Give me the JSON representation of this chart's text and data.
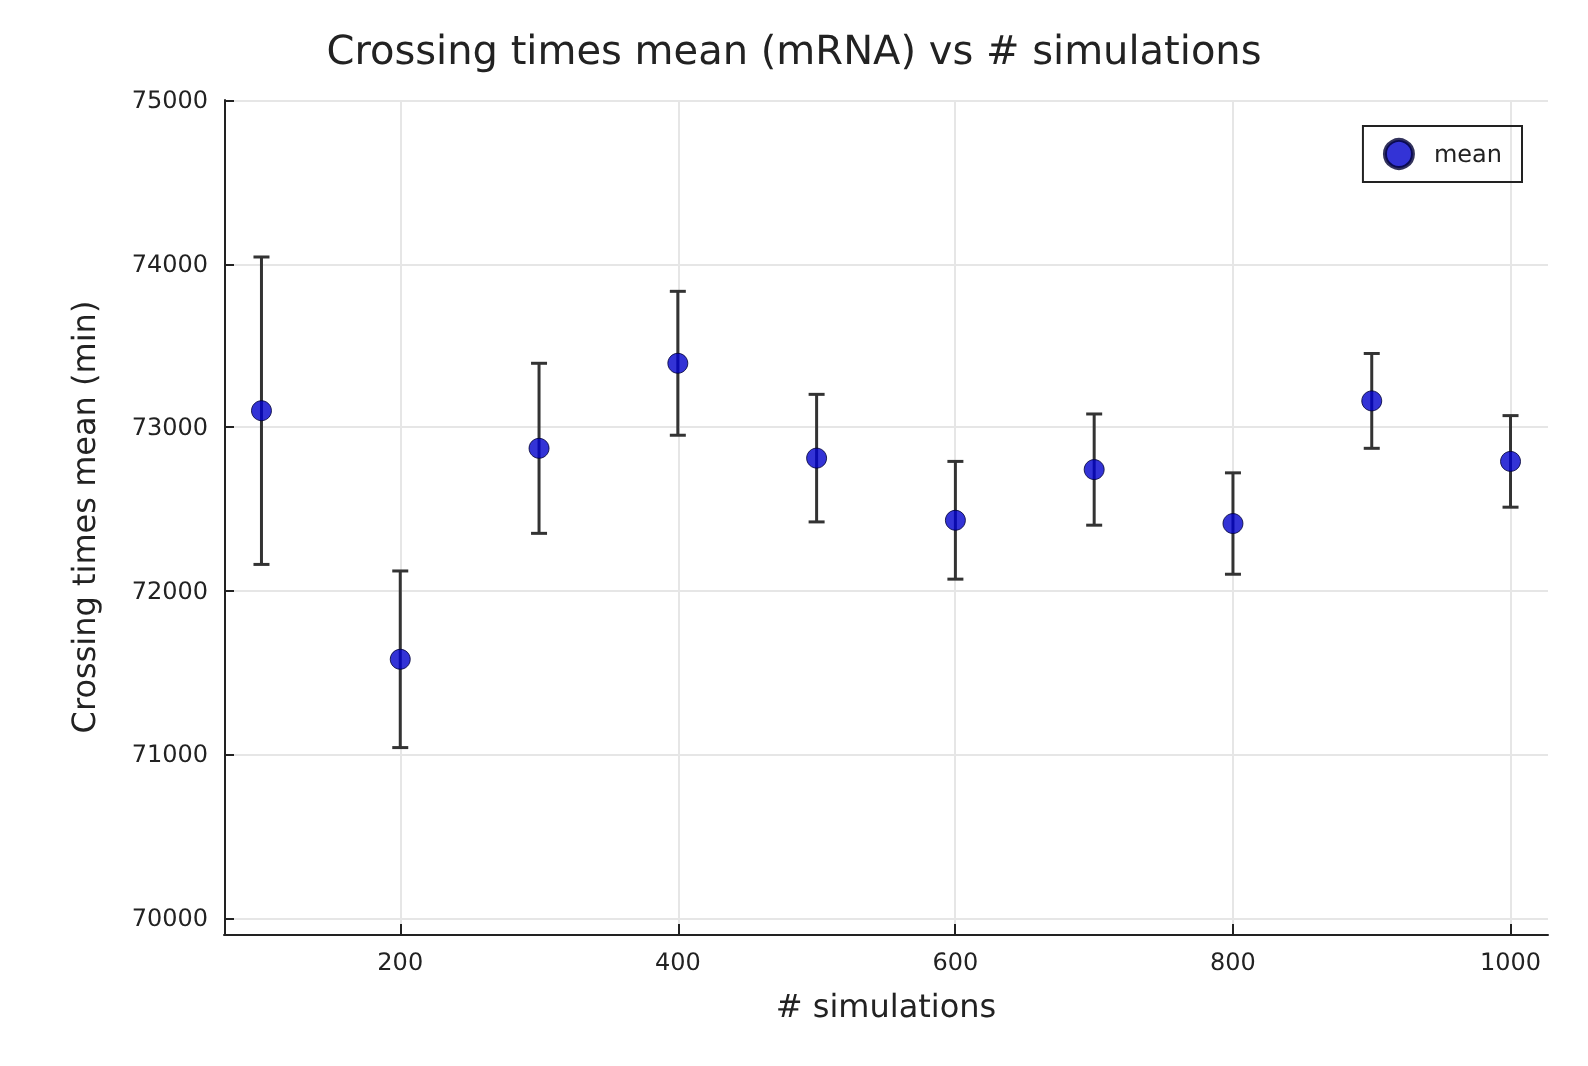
{
  "chart_data": {
    "type": "scatter",
    "title": "Crossing times mean (mRNA) vs # simulations",
    "xlabel": "# simulations",
    "ylabel": "Crossing times mean (min)",
    "x": [
      100,
      200,
      300,
      400,
      500,
      600,
      700,
      800,
      900,
      1000
    ],
    "series": [
      {
        "name": "mean",
        "color": "#0000cc",
        "values": [
          73100,
          71580,
          72870,
          73390,
          72810,
          72430,
          72740,
          72410,
          73160,
          72790
        ],
        "errors": [
          940,
          540,
          520,
          440,
          390,
          360,
          340,
          310,
          290,
          280
        ]
      }
    ],
    "xlim": [
      73,
      1027
    ],
    "xticks": [
      200,
      400,
      600,
      800,
      1000
    ],
    "ylim": [
      69900,
      75000
    ],
    "yticks": [
      70000,
      71000,
      72000,
      73000,
      74000,
      75000
    ],
    "grid": true,
    "legend": "top right",
    "marker": "circle"
  }
}
